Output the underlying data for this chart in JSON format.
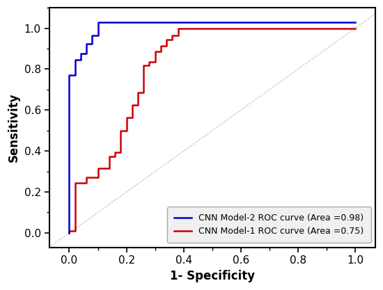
{
  "xlabel": "1- Specificity",
  "ylabel": "Sensitivity",
  "xlim": [
    -0.07,
    1.07
  ],
  "ylim": [
    -0.07,
    1.1
  ],
  "xticks": [
    -0.0,
    0.2,
    0.4,
    0.6,
    0.8,
    1.0
  ],
  "yticks": [
    0.0,
    0.2,
    0.4,
    0.6,
    0.8,
    1.0
  ],
  "blue_label": "CNN Model-2 ROC curve (Area =0.98)",
  "red_label": "CNN Model-1 ROC curve (Area =0.75)",
  "blue_color": "#0000CC",
  "red_color": "#CC0000",
  "diagonal_color": "#aaaaaa",
  "background_color": "#ffffff",
  "blue_x": [
    0.0,
    0.0,
    0.02,
    0.02,
    0.04,
    0.04,
    0.06,
    0.06,
    0.08,
    0.08,
    0.1,
    0.1,
    0.12,
    0.12,
    1.0
  ],
  "blue_y": [
    0.0,
    0.77,
    0.77,
    0.845,
    0.845,
    0.875,
    0.875,
    0.925,
    0.925,
    0.965,
    0.965,
    1.03,
    1.03,
    1.03,
    1.03
  ],
  "red_x": [
    0.0,
    0.0,
    0.02,
    0.02,
    0.06,
    0.06,
    0.1,
    0.1,
    0.14,
    0.14,
    0.16,
    0.16,
    0.18,
    0.18,
    0.2,
    0.2,
    0.22,
    0.22,
    0.24,
    0.24,
    0.26,
    0.26,
    0.28,
    0.28,
    0.3,
    0.3,
    0.32,
    0.32,
    0.34,
    0.34,
    0.36,
    0.36,
    0.38,
    0.38,
    0.4,
    0.4,
    0.44,
    0.44,
    1.0
  ],
  "red_y": [
    0.0,
    0.01,
    0.01,
    0.245,
    0.245,
    0.27,
    0.27,
    0.315,
    0.315,
    0.375,
    0.375,
    0.395,
    0.395,
    0.5,
    0.5,
    0.565,
    0.565,
    0.625,
    0.625,
    0.685,
    0.685,
    0.82,
    0.82,
    0.835,
    0.835,
    0.885,
    0.885,
    0.915,
    0.915,
    0.945,
    0.945,
    0.965,
    0.965,
    1.0,
    1.0,
    1.0,
    1.0,
    1.0,
    1.0
  ],
  "linewidth": 1.8,
  "legend_fontsize": 9,
  "axis_fontsize": 12,
  "tick_fontsize": 11
}
